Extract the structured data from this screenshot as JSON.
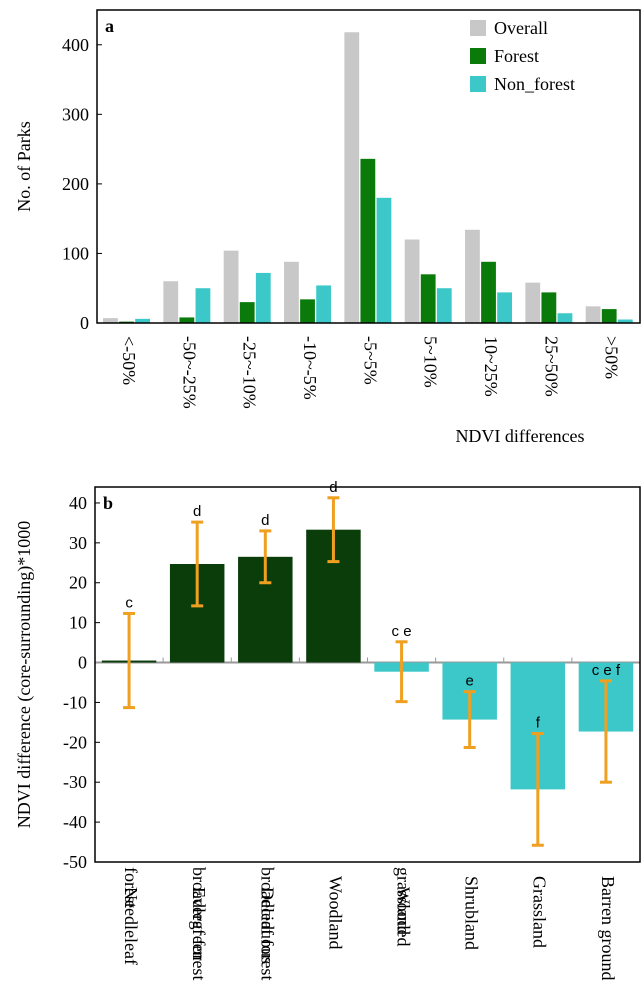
{
  "chart_data": [
    {
      "type": "bar",
      "panel_label": "a",
      "x_label": "NDVI differences",
      "y_label": "No. of Parks",
      "categories": [
        "<-50%",
        "-50~-25%",
        "-25~-10%",
        "-10~-5%",
        "-5~5%",
        "5~10%",
        "10~25%",
        "25~50%",
        ">50%"
      ],
      "series": [
        {
          "name": "Overall",
          "color": "#c8c8c8",
          "values": [
            7,
            60,
            104,
            88,
            418,
            120,
            134,
            58,
            24
          ]
        },
        {
          "name": "Forest",
          "color": "#0a7a0a",
          "values": [
            2,
            8,
            30,
            34,
            236,
            70,
            88,
            44,
            20
          ]
        },
        {
          "name": "Non_forest",
          "color": "#3cc8c8",
          "values": [
            6,
            50,
            72,
            54,
            180,
            50,
            44,
            14,
            5
          ]
        }
      ],
      "ylim": [
        0,
        450
      ],
      "yticks": [
        0,
        100,
        200,
        300,
        400
      ],
      "grid": false,
      "legend": "upper right"
    },
    {
      "type": "bar",
      "panel_label": "b",
      "y_label": "NDVI difference (core-surrounding)*1000",
      "categories": [
        "Needleleaf forest",
        "Evergreen broadleaf forest",
        "Deciduous broadleaf forest",
        "Woodland",
        "Wooded grassland",
        "Shrubland",
        "Grassland",
        "Barren ground"
      ],
      "values": [
        0.5,
        24.7,
        26.5,
        33.3,
        -2.3,
        -14.3,
        -31.8,
        -17.3
      ],
      "errors": [
        11.8,
        10.5,
        6.5,
        8,
        7.5,
        7,
        14,
        12.7
      ],
      "group_labels": [
        "c",
        "d",
        "d",
        "d",
        "c e",
        "e",
        "f",
        "c e f"
      ],
      "colors": [
        "#0b3d0b",
        "#0b3d0b",
        "#0b3d0b",
        "#0b3d0b",
        "#3cc8c8",
        "#3cc8c8",
        "#3cc8c8",
        "#3cc8c8"
      ],
      "error_color": "#f0a020",
      "ylim": [
        -50,
        44
      ],
      "yticks": [
        -50,
        -40,
        -30,
        -20,
        -10,
        0,
        10,
        20,
        30,
        40
      ],
      "grid": false
    }
  ]
}
